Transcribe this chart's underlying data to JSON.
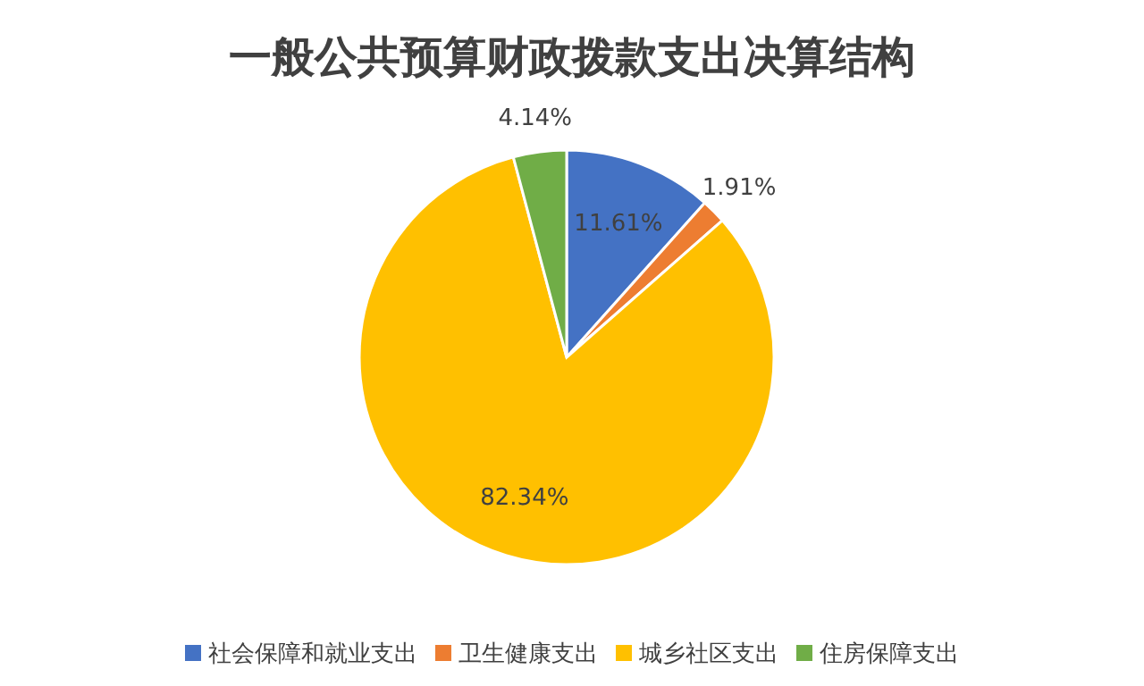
{
  "chart_data": {
    "type": "pie",
    "title": "一般公共预算财政拨款支出决算结构",
    "categories": [
      "社会保障和就业支出",
      "卫生健康支出",
      "城乡社区支出",
      "住房保障支出"
    ],
    "values": [
      11.61,
      1.91,
      82.34,
      4.14
    ],
    "colors": [
      "#4472c4",
      "#ed7d31",
      "#ffc000",
      "#70ad47"
    ],
    "value_labels": [
      "11.61%",
      "1.91%",
      "82.34%",
      "4.14%"
    ],
    "legend": "bottom"
  }
}
